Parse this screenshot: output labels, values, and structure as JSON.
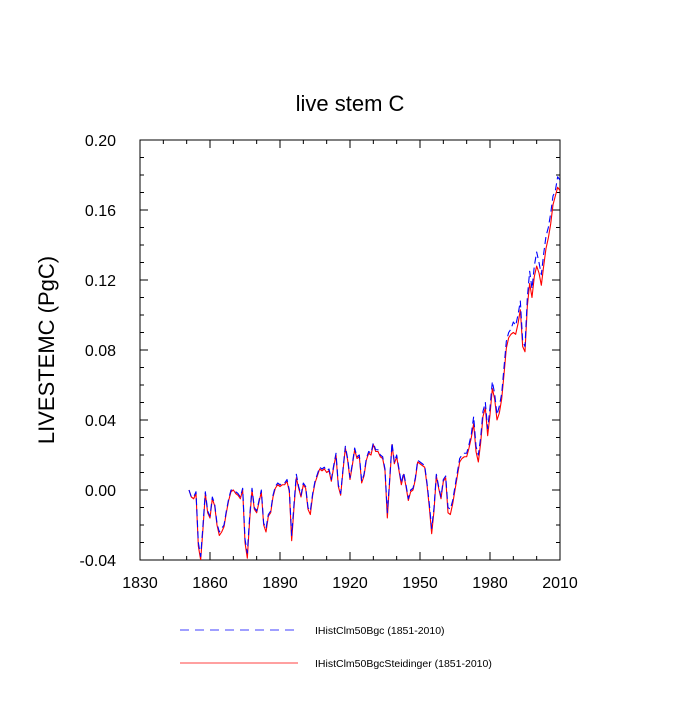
{
  "chart_data": {
    "type": "line",
    "title": "live stem C",
    "xlabel": "",
    "ylabel": "LIVESTEMC  (PgC)",
    "xlim": [
      1830,
      2010
    ],
    "ylim": [
      -0.04,
      0.2
    ],
    "xticks": [
      1830,
      1860,
      1890,
      1920,
      1950,
      1980,
      2010
    ],
    "xtick_labels": [
      "1830",
      "1860",
      "1890",
      "1920",
      "1950",
      "1980",
      "2010"
    ],
    "yticks": [
      -0.04,
      0.0,
      0.04,
      0.08,
      0.12,
      0.16,
      0.2
    ],
    "ytick_labels": [
      "-0.04",
      "0.00",
      "0.04",
      "0.08",
      "0.12",
      "0.16",
      "0.20"
    ],
    "grid": false,
    "legend_position": "bottom",
    "series": [
      {
        "name": "IHistClm50Bgc (1851-2010)",
        "color": "#0000ff",
        "style": "dashed",
        "x": [
          1851,
          1852,
          1853,
          1854,
          1855,
          1856,
          1857,
          1858,
          1859,
          1860,
          1861,
          1862,
          1863,
          1864,
          1865,
          1866,
          1867,
          1868,
          1869,
          1870,
          1871,
          1872,
          1873,
          1874,
          1875,
          1876,
          1877,
          1878,
          1879,
          1880,
          1881,
          1882,
          1883,
          1884,
          1885,
          1886,
          1887,
          1888,
          1889,
          1890,
          1891,
          1892,
          1893,
          1894,
          1895,
          1896,
          1897,
          1898,
          1899,
          1900,
          1901,
          1902,
          1903,
          1904,
          1905,
          1906,
          1907,
          1908,
          1909,
          1910,
          1911,
          1912,
          1913,
          1914,
          1915,
          1916,
          1917,
          1918,
          1919,
          1920,
          1921,
          1922,
          1923,
          1924,
          1925,
          1926,
          1927,
          1928,
          1929,
          1930,
          1931,
          1932,
          1933,
          1934,
          1935,
          1936,
          1937,
          1938,
          1939,
          1940,
          1941,
          1942,
          1943,
          1944,
          1945,
          1946,
          1947,
          1948,
          1949,
          1950,
          1951,
          1952,
          1953,
          1954,
          1955,
          1956,
          1957,
          1958,
          1959,
          1960,
          1961,
          1962,
          1963,
          1964,
          1965,
          1966,
          1967,
          1968,
          1969,
          1970,
          1971,
          1972,
          1973,
          1974,
          1975,
          1976,
          1977,
          1978,
          1979,
          1980,
          1981,
          1982,
          1983,
          1984,
          1985,
          1986,
          1987,
          1988,
          1989,
          1990,
          1991,
          1992,
          1993,
          1994,
          1995,
          1996,
          1997,
          1998,
          1999,
          2000,
          2001,
          2002,
          2003,
          2004,
          2005,
          2006,
          2007,
          2008,
          2009,
          2010
        ],
        "y": [
          0.0,
          -0.004,
          -0.004,
          -0.001,
          -0.03,
          -0.038,
          -0.02,
          -0.001,
          -0.012,
          -0.015,
          -0.004,
          -0.008,
          -0.019,
          -0.024,
          -0.022,
          -0.02,
          -0.012,
          -0.005,
          0.0,
          0.0,
          -0.001,
          -0.002,
          -0.004,
          0.001,
          -0.028,
          -0.036,
          -0.015,
          0.001,
          -0.01,
          -0.012,
          -0.006,
          0.0,
          -0.019,
          -0.022,
          -0.014,
          -0.012,
          -0.003,
          0.002,
          0.004,
          0.003,
          0.004,
          0.004,
          0.006,
          0.0,
          -0.026,
          -0.008,
          0.009,
          0.002,
          -0.003,
          0.004,
          0.002,
          -0.01,
          -0.012,
          -0.002,
          0.005,
          0.009,
          0.013,
          0.012,
          0.013,
          0.011,
          0.012,
          0.006,
          0.014,
          0.021,
          0.003,
          -0.002,
          0.012,
          0.025,
          0.018,
          0.007,
          0.015,
          0.024,
          0.019,
          0.02,
          0.005,
          0.009,
          0.018,
          0.022,
          0.021,
          0.027,
          0.023,
          0.023,
          0.02,
          0.019,
          0.012,
          -0.013,
          0.006,
          0.027,
          0.016,
          0.02,
          0.012,
          0.004,
          0.01,
          0.003,
          -0.005,
          0.0,
          0.001,
          0.007,
          0.017,
          0.016,
          0.015,
          0.014,
          0.004,
          -0.008,
          -0.022,
          -0.01,
          0.009,
          0.002,
          -0.004,
          0.006,
          0.008,
          -0.01,
          -0.011,
          -0.006,
          0.002,
          0.01,
          0.018,
          0.02,
          0.021,
          0.021,
          0.026,
          0.032,
          0.042,
          0.025,
          0.02,
          0.03,
          0.045,
          0.05,
          0.035,
          0.047,
          0.062,
          0.055,
          0.043,
          0.048,
          0.055,
          0.07,
          0.085,
          0.09,
          0.092,
          0.096,
          0.094,
          0.1,
          0.108,
          0.085,
          0.082,
          0.11,
          0.125,
          0.115,
          0.128,
          0.136,
          0.13,
          0.123,
          0.135,
          0.145,
          0.15,
          0.158,
          0.168,
          0.171,
          0.179,
          0.177
        ]
      },
      {
        "name": "IHistClm50BgcSteidinger (1851-2010)",
        "color": "#ff0000",
        "style": "solid",
        "x": [
          1851,
          1852,
          1853,
          1854,
          1855,
          1856,
          1857,
          1858,
          1859,
          1860,
          1861,
          1862,
          1863,
          1864,
          1865,
          1866,
          1867,
          1868,
          1869,
          1870,
          1871,
          1872,
          1873,
          1874,
          1875,
          1876,
          1877,
          1878,
          1879,
          1880,
          1881,
          1882,
          1883,
          1884,
          1885,
          1886,
          1887,
          1888,
          1889,
          1890,
          1891,
          1892,
          1893,
          1894,
          1895,
          1896,
          1897,
          1898,
          1899,
          1900,
          1901,
          1902,
          1903,
          1904,
          1905,
          1906,
          1907,
          1908,
          1909,
          1910,
          1911,
          1912,
          1913,
          1914,
          1915,
          1916,
          1917,
          1918,
          1919,
          1920,
          1921,
          1922,
          1923,
          1924,
          1925,
          1926,
          1927,
          1928,
          1929,
          1930,
          1931,
          1932,
          1933,
          1934,
          1935,
          1936,
          1937,
          1938,
          1939,
          1940,
          1941,
          1942,
          1943,
          1944,
          1945,
          1946,
          1947,
          1948,
          1949,
          1950,
          1951,
          1952,
          1953,
          1954,
          1955,
          1956,
          1957,
          1958,
          1959,
          1960,
          1961,
          1962,
          1963,
          1964,
          1965,
          1966,
          1967,
          1968,
          1969,
          1970,
          1971,
          1972,
          1973,
          1974,
          1975,
          1976,
          1977,
          1978,
          1979,
          1980,
          1981,
          1982,
          1983,
          1984,
          1985,
          1986,
          1987,
          1988,
          1989,
          1990,
          1991,
          1992,
          1993,
          1994,
          1995,
          1996,
          1997,
          1998,
          1999,
          2000,
          2001,
          2002,
          2003,
          2004,
          2005,
          2006,
          2007,
          2008,
          2009,
          2010
        ],
        "y": [
          0.0,
          -0.004,
          -0.005,
          -0.002,
          -0.032,
          -0.04,
          -0.022,
          -0.002,
          -0.013,
          -0.016,
          -0.005,
          -0.009,
          -0.02,
          -0.026,
          -0.024,
          -0.021,
          -0.013,
          -0.006,
          -0.001,
          0.0,
          -0.002,
          -0.003,
          -0.005,
          0.0,
          -0.03,
          -0.039,
          -0.017,
          0.0,
          -0.011,
          -0.013,
          -0.007,
          -0.001,
          -0.02,
          -0.024,
          -0.015,
          -0.013,
          -0.004,
          0.001,
          0.003,
          0.002,
          0.003,
          0.003,
          0.005,
          -0.001,
          -0.029,
          -0.01,
          0.007,
          0.001,
          -0.004,
          0.003,
          0.001,
          -0.011,
          -0.014,
          -0.003,
          0.004,
          0.008,
          0.012,
          0.011,
          0.012,
          0.01,
          0.011,
          0.005,
          0.013,
          0.02,
          0.002,
          -0.003,
          0.011,
          0.024,
          0.017,
          0.006,
          0.014,
          0.023,
          0.018,
          0.019,
          0.004,
          0.008,
          0.017,
          0.021,
          0.02,
          0.026,
          0.022,
          0.022,
          0.019,
          0.018,
          0.011,
          -0.016,
          0.005,
          0.026,
          0.015,
          0.019,
          0.011,
          0.003,
          0.009,
          0.002,
          -0.006,
          -0.001,
          0.0,
          0.006,
          0.016,
          0.015,
          0.014,
          0.013,
          0.003,
          -0.01,
          -0.025,
          -0.012,
          0.008,
          0.001,
          -0.005,
          0.005,
          0.007,
          -0.013,
          -0.014,
          -0.008,
          0.0,
          0.008,
          0.016,
          0.018,
          0.019,
          0.019,
          0.024,
          0.03,
          0.038,
          0.022,
          0.016,
          0.027,
          0.042,
          0.047,
          0.031,
          0.043,
          0.058,
          0.052,
          0.04,
          0.044,
          0.052,
          0.066,
          0.081,
          0.087,
          0.089,
          0.09,
          0.089,
          0.095,
          0.103,
          0.082,
          0.079,
          0.105,
          0.118,
          0.11,
          0.122,
          0.128,
          0.124,
          0.117,
          0.128,
          0.138,
          0.144,
          0.152,
          0.163,
          0.168,
          0.173,
          0.171
        ]
      }
    ]
  }
}
